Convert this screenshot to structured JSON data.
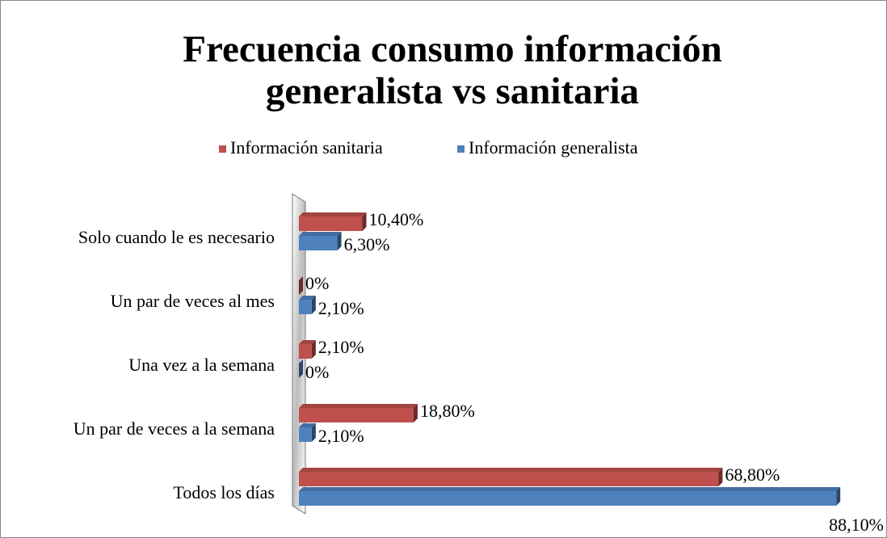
{
  "chart_data": {
    "type": "bar",
    "orientation": "horizontal",
    "title": "Frecuencia consumo información generalista vs sanitaria",
    "categories": [
      "Solo cuando le es necesario",
      "Un par de veces al mes",
      "Una vez a la semana",
      "Un par de veces a la semana",
      "Todos los días"
    ],
    "series": [
      {
        "name": "Información sanitaria",
        "color": "#c0504d",
        "values": [
          10.4,
          0,
          2.1,
          18.8,
          68.8
        ],
        "value_labels": [
          "10,40%",
          "0%",
          "2,10%",
          "18,80%",
          "68,80%"
        ]
      },
      {
        "name": "Información generalista",
        "color": "#4f81bd",
        "values": [
          6.3,
          2.1,
          0,
          2.1,
          88.1
        ],
        "value_labels": [
          "6,30%",
          "2,10%",
          "0%",
          "2,10%",
          "88,10%"
        ]
      }
    ],
    "legend": "top"
  }
}
